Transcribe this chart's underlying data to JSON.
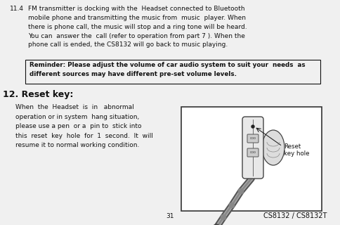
{
  "bg_color": "#f0f0f0",
  "text_color": "#111111",
  "border_color": "#444444",
  "section_11_4_label": "11.4",
  "section_11_4_text": "FM transmitter is docking with the  Headset connected to Bluetooth\nmobile phone and transmitting the music from  music  player. When\nthere is phone call, the music will stop and a ring tone will be heard.\nYou can  answer the  call (refer to operation from part 7 ). When the\nphone call is ended, the CS8132 will go back to music playing.",
  "reminder_text": "Reminder: Please adjust the volume of car audio system to suit your  needs  as\ndifferent sources may have different pre-set volume levels.",
  "section_12_label": "12. Reset key:",
  "section_12_text": "When  the  Headset  is  in   abnormal\noperation or in system  hang situation,\nplease use a pen  or a  pin to  stick into\nthis  reset  key  hole  for  1  second.  It  will\nresume it to normal working condition.",
  "reset_label": "Reset\nkey hole",
  "page_number": "31",
  "model_text": "CS8132 / CS8132T"
}
